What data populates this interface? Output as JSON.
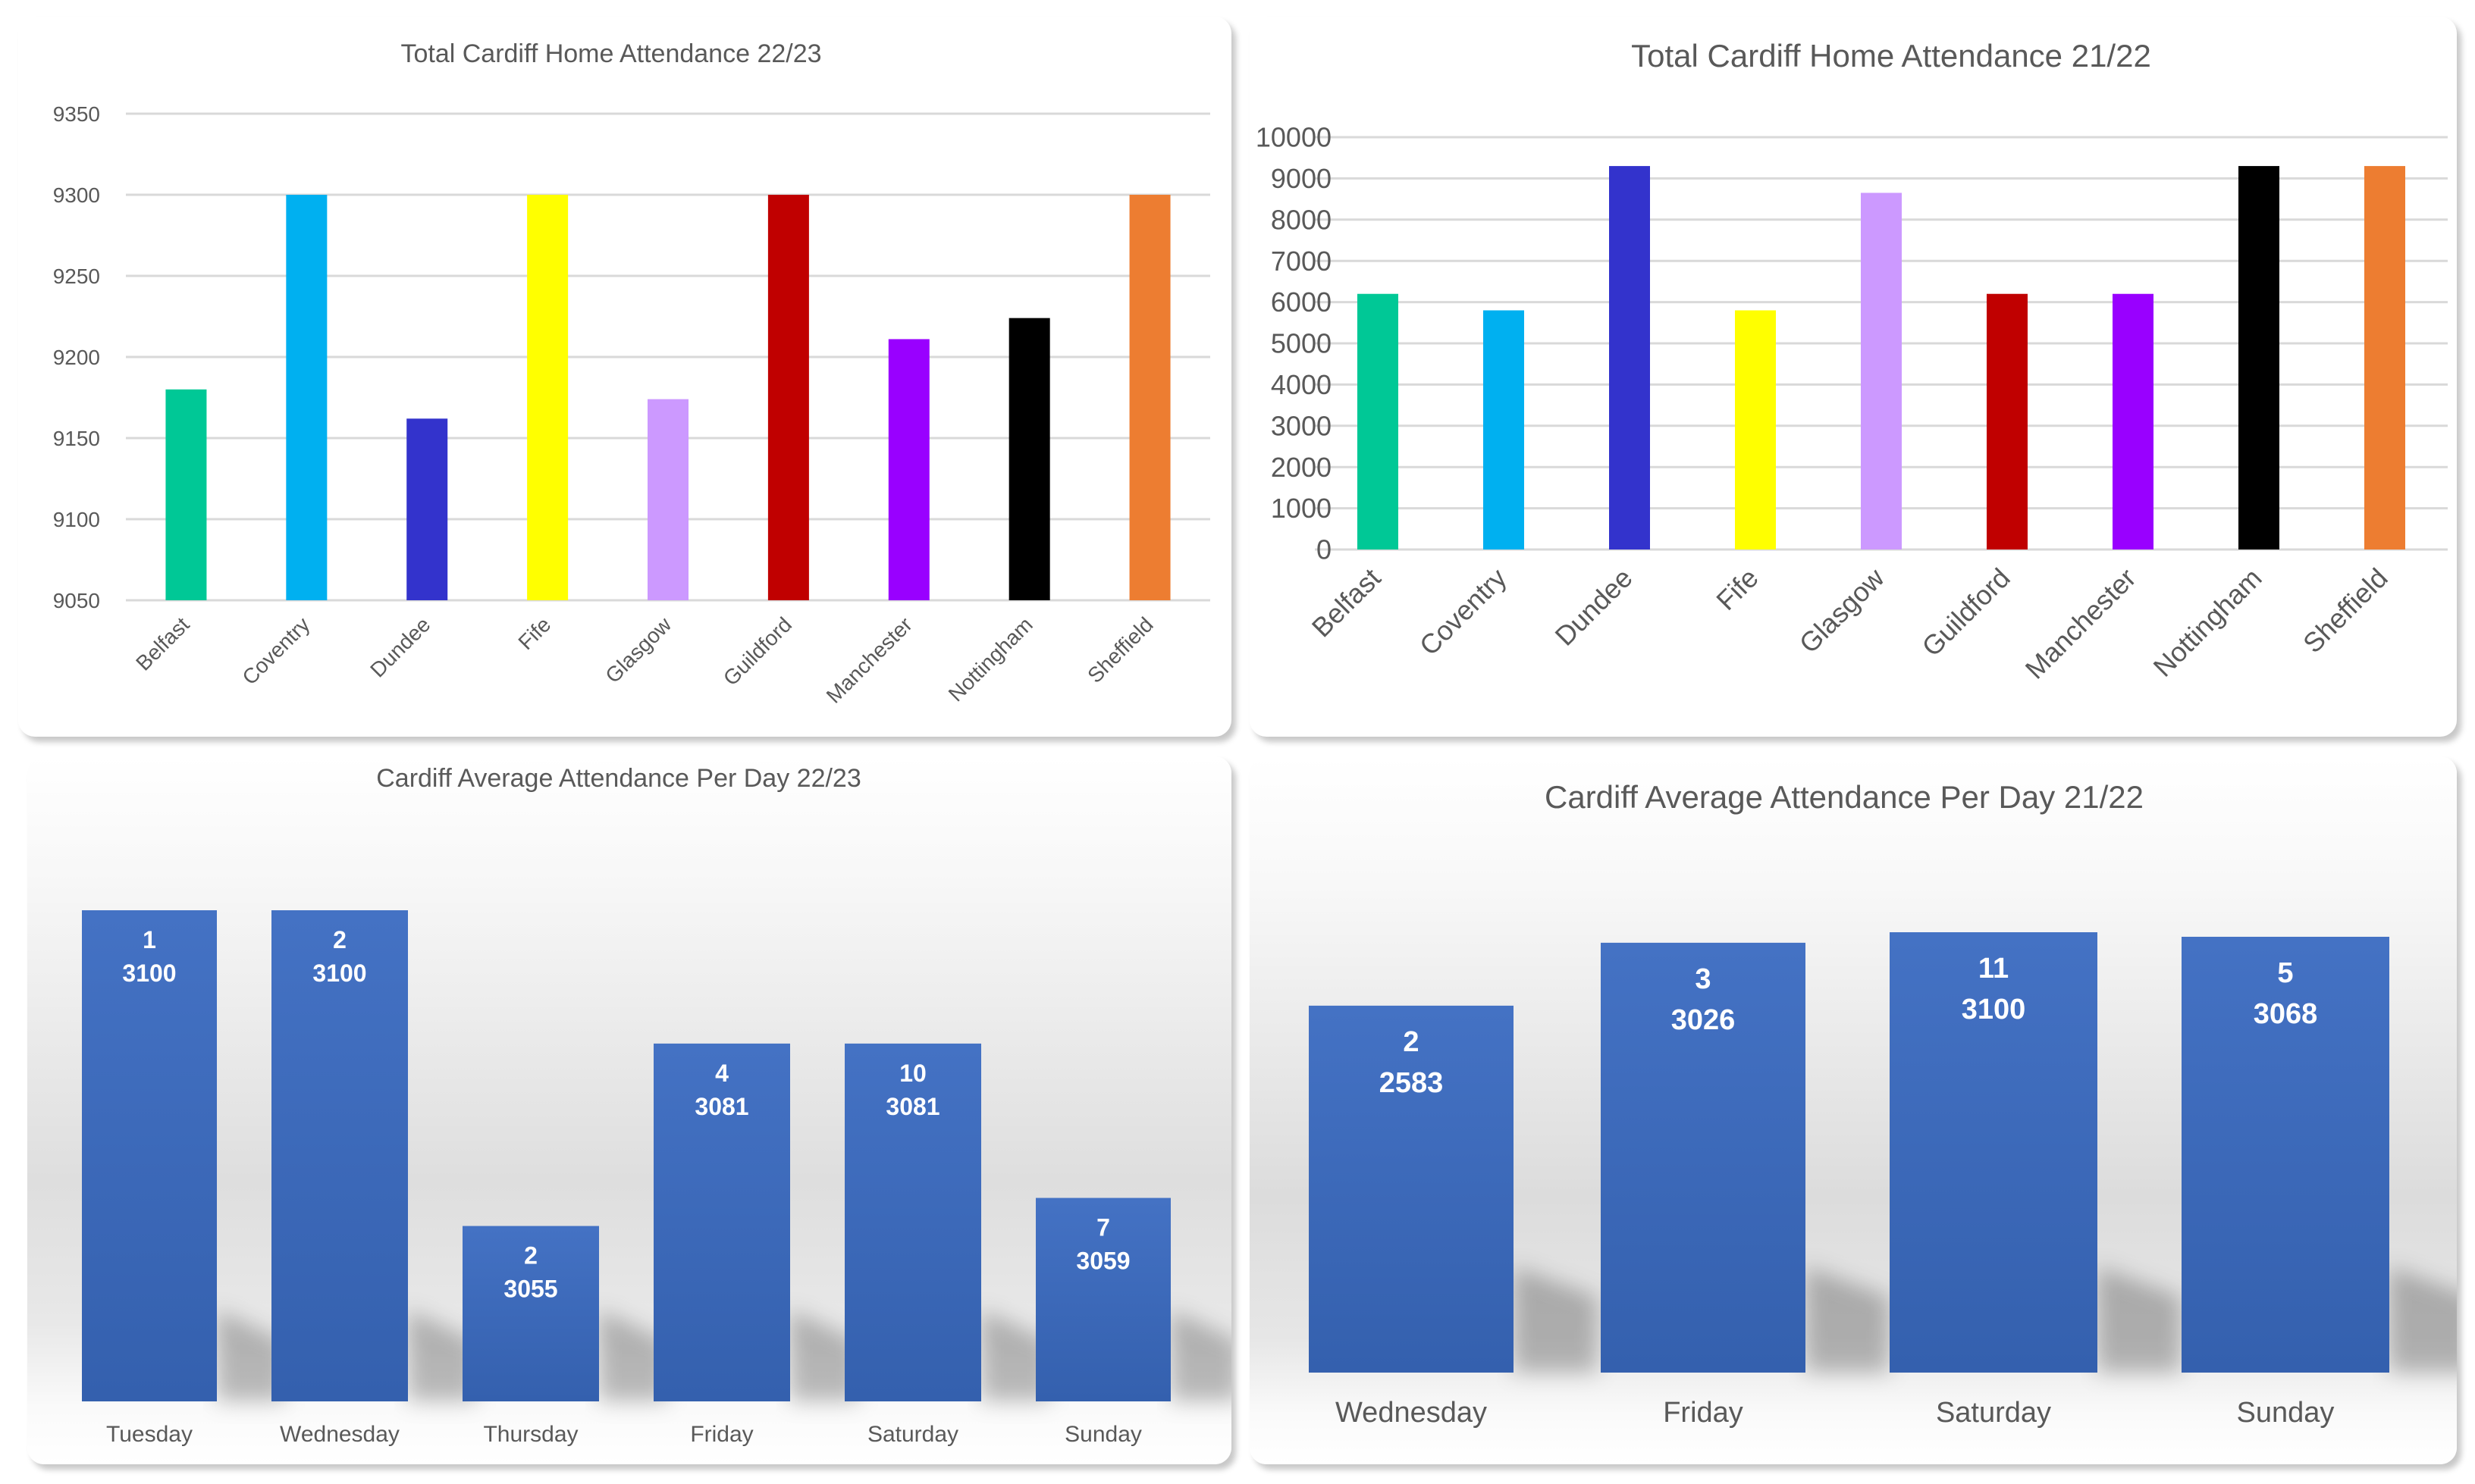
{
  "chart_data": [
    {
      "id": "total-22-23",
      "type": "bar",
      "title": "Total Cardiff Home Attendance 22/23",
      "xlabel": "",
      "ylabel": "",
      "categories": [
        "Belfast",
        "Coventry",
        "Dundee",
        "Fife",
        "Glasgow",
        "Guildford",
        "Manchester",
        "Nottingham",
        "Sheffield"
      ],
      "values": [
        9180,
        9300,
        9162,
        9300,
        9174,
        9300,
        9211,
        9224,
        9300
      ],
      "colors": [
        "#00C896",
        "#00B0F0",
        "#3333CC",
        "#FFFF00",
        "#CC99FF",
        "#C00000",
        "#9900FF",
        "#000000",
        "#ED7D31"
      ],
      "ylim": [
        9050,
        9350
      ],
      "yticks": [
        9050,
        9100,
        9150,
        9200,
        9250,
        9300,
        9350
      ],
      "grid": true,
      "legend": "none"
    },
    {
      "id": "total-21-22",
      "type": "bar",
      "title": "Total Cardiff Home Attendance 21/22",
      "xlabel": "",
      "ylabel": "",
      "categories": [
        "Belfast",
        "Coventry",
        "Dundee",
        "Fife",
        "Glasgow",
        "Guildford",
        "Manchester",
        "Nottingham",
        "Sheffield"
      ],
      "values": [
        6200,
        5800,
        9300,
        5800,
        8650,
        6200,
        6200,
        9300,
        9300
      ],
      "colors": [
        "#00C896",
        "#00B0F0",
        "#3333CC",
        "#FFFF00",
        "#CC99FF",
        "#C00000",
        "#9900FF",
        "#000000",
        "#ED7D31"
      ],
      "ylim": [
        0,
        10000
      ],
      "yticks": [
        0,
        1000,
        2000,
        3000,
        4000,
        5000,
        6000,
        7000,
        8000,
        9000,
        10000
      ],
      "grid": true,
      "legend": "none"
    },
    {
      "id": "avg-day-22-23",
      "type": "bar",
      "title": "Cardiff Average Attendance Per Day 22/23",
      "xlabel": "",
      "ylabel": "",
      "categories": [
        "Tuesday",
        "Wednesday",
        "Thursday",
        "Friday",
        "Saturday",
        "Sunday"
      ],
      "values": [
        3100,
        3100,
        3055,
        3081,
        3081,
        3059
      ],
      "games": [
        1,
        2,
        2,
        4,
        10,
        7
      ],
      "data_labels": [
        [
          "1",
          "3100"
        ],
        [
          "2",
          "3100"
        ],
        [
          "2",
          "3055"
        ],
        [
          "4",
          "3081"
        ],
        [
          "10",
          "3081"
        ],
        [
          "7",
          "3059"
        ]
      ],
      "ylim": [
        3030,
        3100
      ],
      "bar_color": "#4472C4",
      "grid": false,
      "legend": "none"
    },
    {
      "id": "avg-day-21-22",
      "type": "bar",
      "title": "Cardiff Average Attendance Per Day 21/22",
      "xlabel": "",
      "ylabel": "",
      "categories": [
        "Wednesday",
        "Friday",
        "Saturday",
        "Sunday"
      ],
      "values": [
        2583,
        3026,
        3100,
        3068
      ],
      "games": [
        2,
        3,
        11,
        5
      ],
      "data_labels": [
        [
          "2",
          "2583"
        ],
        [
          "3",
          "3026"
        ],
        [
          "11",
          "3100"
        ],
        [
          "5",
          "3068"
        ]
      ],
      "ylim": [
        0,
        3100
      ],
      "bar_color": "#4472C4",
      "grid": false,
      "legend": "none"
    }
  ]
}
